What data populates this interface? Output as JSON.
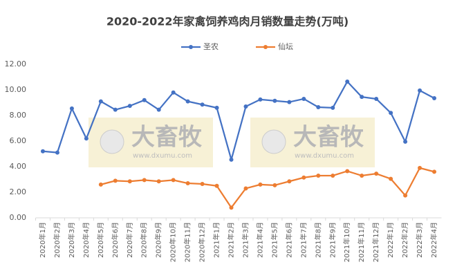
{
  "chart_data": {
    "type": "line",
    "title": "2020-2022年家禽饲养鸡肉月销数量走势(万吨)",
    "categories": [
      "2020年1月",
      "2020年2月",
      "2020年3月",
      "2020年4月",
      "2020年5月",
      "2020年6月",
      "2020年7月",
      "2020年8月",
      "2020年9月",
      "2020年10月",
      "2020年11月",
      "2020年12月",
      "2021年1月",
      "2021年2月",
      "2021年3月",
      "2021年4月",
      "2021年5月",
      "2021年6月",
      "2021年7月",
      "2021年8月",
      "2021年9月",
      "2021年10月",
      "2021年11月",
      "2021年12月",
      "2022年1月",
      "2022年2月",
      "2022年3月",
      "2022年4月"
    ],
    "series": [
      {
        "name": "圣农",
        "color": "#4472c4",
        "values": [
          5.2,
          5.1,
          8.55,
          6.2,
          9.1,
          8.45,
          8.75,
          9.2,
          8.45,
          9.8,
          9.1,
          8.85,
          8.6,
          4.55,
          8.7,
          9.25,
          9.15,
          9.05,
          9.3,
          8.65,
          8.6,
          10.65,
          9.45,
          9.3,
          8.2,
          5.95,
          9.95,
          9.35
        ]
      },
      {
        "name": "仙坛",
        "color": "#ed7d31",
        "values": [
          null,
          null,
          null,
          null,
          2.6,
          2.9,
          2.85,
          2.95,
          2.85,
          2.95,
          2.7,
          2.65,
          2.5,
          0.8,
          2.3,
          2.6,
          2.55,
          2.85,
          3.15,
          3.3,
          3.3,
          3.65,
          3.3,
          3.45,
          3.05,
          1.75,
          3.9,
          3.6
        ]
      }
    ],
    "ylim": [
      0,
      12
    ],
    "yticks": [
      {
        "value": 0,
        "label": "0.00"
      },
      {
        "value": 2,
        "label": "2.00"
      },
      {
        "value": 4,
        "label": "4.00"
      },
      {
        "value": 6,
        "label": "6.00"
      },
      {
        "value": 8,
        "label": "8.00"
      },
      {
        "value": 10,
        "label": "10.00"
      },
      {
        "value": 12,
        "label": "12.00"
      }
    ],
    "grid": false,
    "legend": "top",
    "watermark": {
      "text": "大畜牧",
      "url": "www.dxumu.com"
    }
  }
}
